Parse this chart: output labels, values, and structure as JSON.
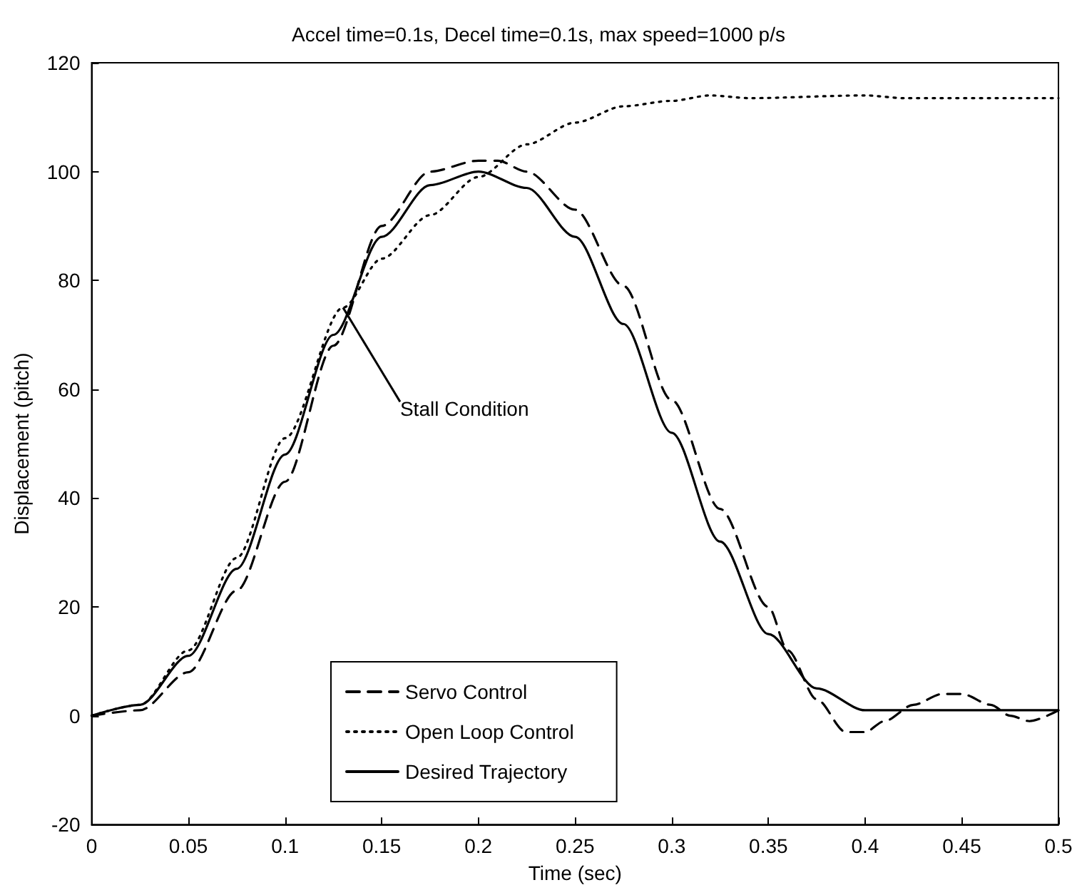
{
  "chart_data": {
    "type": "line",
    "title": "Accel time=0.1s, Decel time=0.1s, max speed=1000 p/s",
    "xlabel": "Time (sec)",
    "ylabel": "Displacement (pitch)",
    "xlim": [
      0,
      0.5
    ],
    "xticks": [
      0,
      0.05,
      0.1,
      0.15,
      0.2,
      0.25,
      0.3,
      0.35,
      0.4,
      0.45,
      0.5
    ],
    "ylim": [
      -20,
      120
    ],
    "yticks": [
      -20,
      0,
      20,
      40,
      60,
      80,
      100,
      120
    ],
    "grid": false,
    "legend": "bottom",
    "marker": "none",
    "annotations": [
      {
        "text": "Stall Condition",
        "x": 0.13,
        "y": 75
      }
    ],
    "series": [
      {
        "name": "Servo Control",
        "color": "#000000",
        "line_style": "dashed",
        "x": [
          0,
          0.025,
          0.05,
          0.075,
          0.1,
          0.125,
          0.15,
          0.175,
          0.2,
          0.21,
          0.225,
          0.25,
          0.275,
          0.3,
          0.325,
          0.35,
          0.36,
          0.375,
          0.39,
          0.4,
          0.41,
          0.425,
          0.44,
          0.45,
          0.465,
          0.475,
          0.485,
          0.5
        ],
        "values": [
          0,
          1,
          8,
          23,
          43,
          68,
          90,
          100,
          102,
          102,
          100,
          93,
          79,
          58,
          38,
          20,
          12,
          3,
          -3,
          -3,
          -1,
          2,
          4,
          4,
          2,
          0,
          -1,
          1
        ]
      },
      {
        "name": "Open Loop Control",
        "color": "#000000",
        "line_style": "dotted",
        "x": [
          0,
          0.025,
          0.05,
          0.075,
          0.1,
          0.13,
          0.15,
          0.175,
          0.2,
          0.225,
          0.25,
          0.275,
          0.3,
          0.32,
          0.34,
          0.4,
          0.42,
          0.5
        ],
        "values": [
          0,
          2,
          12,
          29,
          51,
          75,
          84,
          92,
          99,
          105,
          109,
          112,
          113,
          114,
          113.5,
          114,
          113.5,
          113.5
        ]
      },
      {
        "name": "Desired Trajectory",
        "color": "#000000",
        "line_style": "solid",
        "x": [
          0,
          0.025,
          0.05,
          0.075,
          0.1,
          0.125,
          0.15,
          0.175,
          0.2,
          0.225,
          0.25,
          0.275,
          0.3,
          0.325,
          0.35,
          0.375,
          0.4,
          0.45,
          0.5
        ],
        "values": [
          0,
          2,
          11,
          27,
          48,
          70,
          88,
          97.5,
          100,
          97,
          88,
          72,
          52,
          32,
          15,
          5,
          1,
          1,
          1
        ]
      }
    ]
  }
}
